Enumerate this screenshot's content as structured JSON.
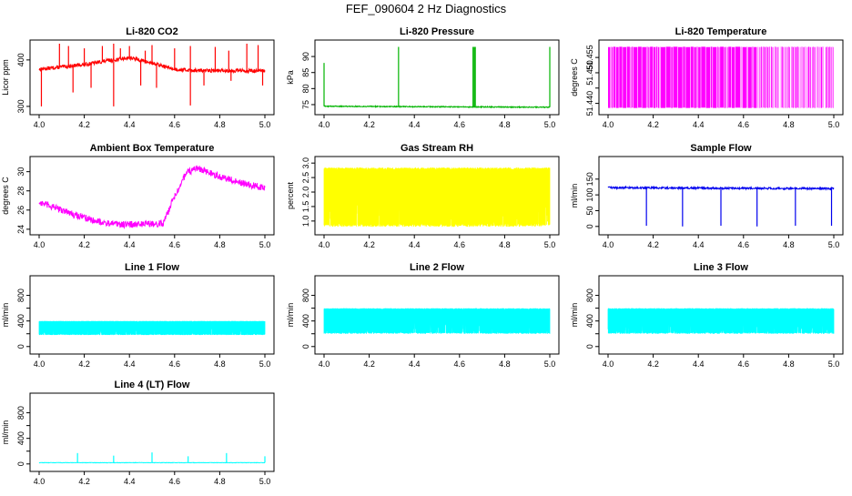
{
  "figure_title": "FEF_090604  2 Hz Diagnostics",
  "colors": {
    "red": "#ff0000",
    "green": "#00b400",
    "magenta": "#ff00ff",
    "yellow": "#ffff00",
    "blue": "#0000ee",
    "cyan": "#00ffff",
    "axis": "#000000"
  },
  "chart_data": [
    {
      "type": "line",
      "title": "Li-820 CO2",
      "ylabel": "Licor ppm",
      "color": "red",
      "xlim": [
        4.0,
        5.0
      ],
      "ylim": [
        290,
        435
      ],
      "xticks": [
        "4.0",
        "4.2",
        "4.4",
        "4.6",
        "4.8",
        "5.0"
      ],
      "yticks": [
        300,
        400
      ],
      "ytick_labels": [
        "300",
        "400"
      ],
      "baseline": [
        [
          4.0,
          380
        ],
        [
          4.1,
          385
        ],
        [
          4.2,
          390
        ],
        [
          4.3,
          398
        ],
        [
          4.4,
          405
        ],
        [
          4.5,
          393
        ],
        [
          4.6,
          380
        ],
        [
          4.7,
          377
        ],
        [
          4.8,
          377
        ],
        [
          4.9,
          377
        ],
        [
          5.0,
          376
        ]
      ],
      "noise": 4,
      "spikes_up": [
        [
          4.09,
          435
        ],
        [
          4.13,
          430
        ],
        [
          4.2,
          425
        ],
        [
          4.28,
          430
        ],
        [
          4.33,
          435
        ],
        [
          4.36,
          425
        ],
        [
          4.4,
          430
        ],
        [
          4.47,
          420
        ],
        [
          4.5,
          432
        ],
        [
          4.6,
          425
        ],
        [
          4.67,
          430
        ],
        [
          4.78,
          428
        ],
        [
          4.84,
          420
        ],
        [
          4.92,
          435
        ],
        [
          4.97,
          432
        ]
      ],
      "spikes_down": [
        [
          4.01,
          300
        ],
        [
          4.15,
          330
        ],
        [
          4.23,
          340
        ],
        [
          4.33,
          300
        ],
        [
          4.45,
          345
        ],
        [
          4.52,
          340
        ],
        [
          4.67,
          302
        ],
        [
          4.73,
          345
        ],
        [
          4.85,
          355
        ],
        [
          4.99,
          345
        ]
      ]
    },
    {
      "type": "line",
      "title": "Li-820 Pressure",
      "ylabel": "kPa",
      "color": "green",
      "xlim": [
        4.0,
        5.0
      ],
      "ylim": [
        73,
        94
      ],
      "xticks": [
        "4.0",
        "4.2",
        "4.4",
        "4.6",
        "4.8",
        "5.0"
      ],
      "yticks": [
        75,
        80,
        85,
        90
      ],
      "ytick_labels": [
        "75",
        "80",
        "85",
        "90"
      ],
      "baseline": [
        [
          4.0,
          74.5
        ],
        [
          4.3,
          74.4
        ],
        [
          4.6,
          74.3
        ],
        [
          5.0,
          74.2
        ]
      ],
      "noise": 0.15,
      "spikes_up": [
        [
          4.0,
          88
        ],
        [
          4.33,
          93
        ],
        [
          4.66,
          93
        ],
        [
          4.665,
          93
        ],
        [
          4.67,
          93
        ],
        [
          5.0,
          93
        ]
      ],
      "spikes_down": []
    },
    {
      "type": "line",
      "title": "Li-820 Temperature",
      "ylabel": "degrees C",
      "color": "magenta",
      "xlim": [
        4.0,
        5.0
      ],
      "ylim": [
        51.4375,
        51.4595
      ],
      "xticks": [
        "4.0",
        "4.2",
        "4.4",
        "4.6",
        "4.8",
        "5.0"
      ],
      "yticks": [
        51.44,
        51.445,
        51.45,
        51.455
      ],
      "ytick_labels": [
        "51.440",
        "",
        "51.450",
        "51.455"
      ],
      "pattern": "square",
      "low": 51.4385,
      "high": 51.4585
    },
    {
      "type": "line",
      "title": "Ambient Box Temperature",
      "ylabel": "degrees C",
      "color": "magenta",
      "xlim": [
        4.0,
        5.0
      ],
      "ylim": [
        23.8,
        31.2
      ],
      "xticks": [
        "4.0",
        "4.2",
        "4.4",
        "4.6",
        "4.8",
        "5.0"
      ],
      "yticks": [
        24,
        26,
        28,
        30
      ],
      "ytick_labels": [
        "24",
        "26",
        "28",
        "30"
      ],
      "baseline": [
        [
          4.0,
          26.8
        ],
        [
          4.1,
          26.0
        ],
        [
          4.2,
          25.2
        ],
        [
          4.3,
          24.6
        ],
        [
          4.4,
          24.5
        ],
        [
          4.55,
          24.6
        ],
        [
          4.6,
          27.5
        ],
        [
          4.65,
          29.8
        ],
        [
          4.7,
          30.4
        ],
        [
          4.8,
          29.5
        ],
        [
          4.9,
          28.8
        ],
        [
          5.0,
          28.3
        ]
      ],
      "noise": 0.35,
      "spikes_up": [],
      "spikes_down": []
    },
    {
      "type": "line",
      "title": "Gas Stream RH",
      "ylabel": "percent",
      "color": "yellow",
      "xlim": [
        4.0,
        5.0
      ],
      "ylim": [
        0.65,
        3.1
      ],
      "xticks": [
        "4.0",
        "4.2",
        "4.4",
        "4.6",
        "4.8",
        "5.0"
      ],
      "yticks": [
        1.0,
        1.5,
        2.0,
        2.5,
        3.0
      ],
      "ytick_labels": [
        "1.0",
        "1.5",
        "2.0",
        "2.5",
        "3.0"
      ],
      "pattern": "band",
      "low": 0.8,
      "high": 2.85
    },
    {
      "type": "line",
      "title": "Sample Flow",
      "ylabel": "ml/min",
      "color": "blue",
      "xlim": [
        4.0,
        5.0
      ],
      "ylim": [
        -15,
        210
      ],
      "xticks": [
        "4.0",
        "4.2",
        "4.4",
        "4.6",
        "4.8",
        "5.0"
      ],
      "yticks": [
        0,
        50,
        100,
        150
      ],
      "ytick_labels": [
        "0",
        "50",
        "100",
        "150"
      ],
      "baseline": [
        [
          4.0,
          123
        ],
        [
          4.5,
          121
        ],
        [
          5.0,
          120
        ]
      ],
      "noise": 3,
      "spikes_up": [],
      "spikes_down": [
        [
          4.17,
          2
        ],
        [
          4.33,
          0
        ],
        [
          4.5,
          2
        ],
        [
          4.66,
          0
        ],
        [
          4.83,
          2
        ],
        [
          4.99,
          2
        ]
      ]
    },
    {
      "type": "line",
      "title": "Line 1 Flow",
      "ylabel": "ml/min",
      "color": "cyan",
      "xlim": [
        4.0,
        5.0
      ],
      "ylim": [
        -60,
        1050
      ],
      "xticks": [
        "4.0",
        "4.2",
        "4.4",
        "4.6",
        "4.8",
        "5.0"
      ],
      "yticks": [
        0,
        200,
        400,
        600,
        800
      ],
      "ytick_labels": [
        "0",
        "",
        "400",
        "",
        "800"
      ],
      "pattern": "band",
      "low": 180,
      "high": 400
    },
    {
      "type": "line",
      "title": "Line 2 Flow",
      "ylabel": "ml/min",
      "color": "cyan",
      "xlim": [
        4.0,
        5.0
      ],
      "ylim": [
        -60,
        1050
      ],
      "xticks": [
        "4.0",
        "4.2",
        "4.4",
        "4.6",
        "4.8",
        "5.0"
      ],
      "yticks": [
        0,
        200,
        400,
        600,
        800
      ],
      "ytick_labels": [
        "0",
        "",
        "400",
        "",
        "800"
      ],
      "pattern": "band",
      "low": 200,
      "high": 600
    },
    {
      "type": "line",
      "title": "Line 3 Flow",
      "ylabel": "ml/min",
      "color": "cyan",
      "xlim": [
        4.0,
        5.0
      ],
      "ylim": [
        -60,
        1050
      ],
      "xticks": [
        "4.0",
        "4.2",
        "4.4",
        "4.6",
        "4.8",
        "5.0"
      ],
      "yticks": [
        0,
        200,
        400,
        600,
        800
      ],
      "ytick_labels": [
        "0",
        "",
        "400",
        "",
        "800"
      ],
      "pattern": "band",
      "low": 200,
      "high": 600
    },
    {
      "type": "line",
      "title": "Line 4 (LT) Flow",
      "ylabel": "ml/min",
      "color": "cyan",
      "xlim": [
        4.0,
        5.0
      ],
      "ylim": [
        -60,
        1050
      ],
      "xticks": [
        "4.0",
        "4.2",
        "4.4",
        "4.6",
        "4.8",
        "5.0"
      ],
      "yticks": [
        0,
        200,
        400,
        600,
        800
      ],
      "ytick_labels": [
        "0",
        "",
        "400",
        "",
        "800"
      ],
      "baseline": [
        [
          4.0,
          20
        ],
        [
          5.0,
          20
        ]
      ],
      "noise": 3,
      "spikes_up": [
        [
          4.17,
          170
        ],
        [
          4.33,
          130
        ],
        [
          4.5,
          180
        ],
        [
          4.66,
          120
        ],
        [
          4.83,
          170
        ],
        [
          5.0,
          120
        ]
      ],
      "spikes_down": []
    }
  ]
}
